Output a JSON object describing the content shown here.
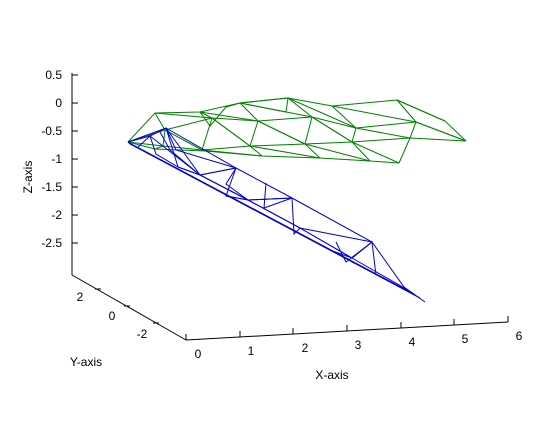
{
  "chart_data": {
    "type": "wireframe-3d",
    "title": "",
    "xlabel": "X-axis",
    "ylabel": "Y-axis",
    "zlabel": "Z-axis",
    "x_ticks": [
      "0",
      "1",
      "2",
      "3",
      "4",
      "5",
      "6"
    ],
    "y_ticks": [
      "2",
      "0",
      "-2"
    ],
    "z_ticks": [
      "0.5",
      "0",
      "-0.5",
      "-1",
      "-1.5",
      "-2",
      "-2.5"
    ],
    "series": [
      {
        "color": "#008000"
      },
      {
        "color": "#0000cc"
      }
    ]
  }
}
